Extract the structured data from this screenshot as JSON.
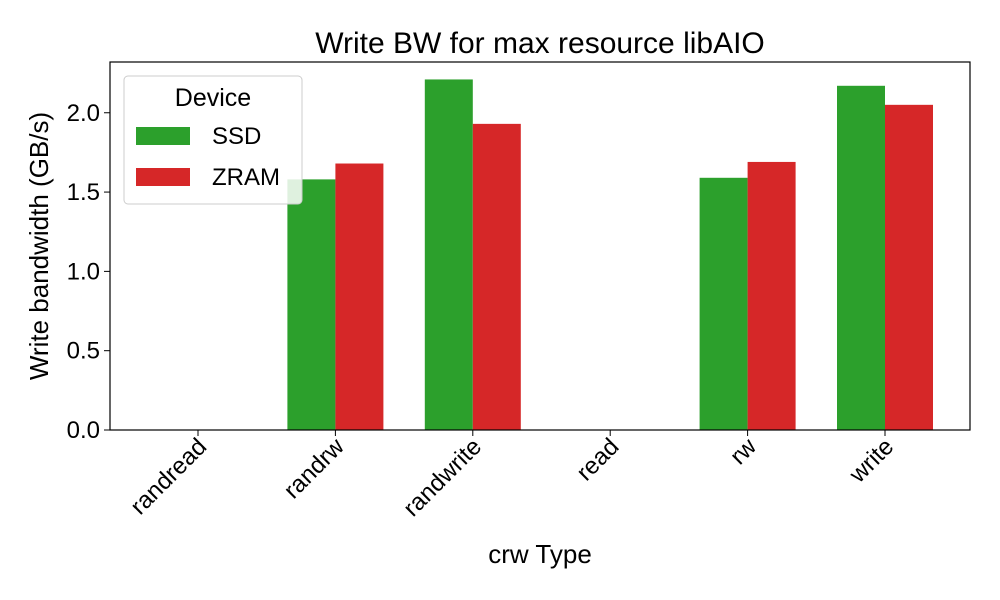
{
  "chart_data": {
    "type": "bar",
    "title": "Write BW for max resource libAIO",
    "xlabel": "crw Type",
    "ylabel": "Write bandwidth (GB/s)",
    "categories": [
      "randread",
      "randrw",
      "randwrite",
      "read",
      "rw",
      "write"
    ],
    "series": [
      {
        "name": "SSD",
        "color": "#2ca02c",
        "values": [
          0,
          1.58,
          2.21,
          0,
          1.59,
          2.17
        ]
      },
      {
        "name": "ZRAM",
        "color": "#d62728",
        "values": [
          0,
          1.68,
          1.93,
          0,
          1.69,
          2.05
        ]
      }
    ],
    "ylim": [
      0,
      2.32
    ],
    "yticks": [
      "0.0",
      "0.5",
      "1.0",
      "1.5",
      "2.0"
    ],
    "grid": false,
    "legend": {
      "title": "Device",
      "placement": "top-left"
    }
  }
}
